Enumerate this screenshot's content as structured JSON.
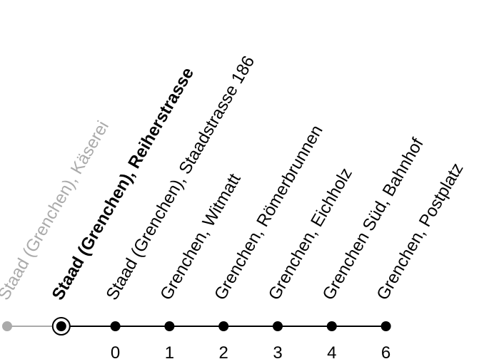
{
  "route": {
    "colors": {
      "past": "#aaaaaa",
      "line": "#000000",
      "background": "#ffffff"
    },
    "stops": [
      {
        "name": "Staad (Grenchen), Käserei",
        "minutes": "",
        "state": "past"
      },
      {
        "name": "Staad (Grenchen), Reiherstrasse",
        "minutes": "",
        "state": "current"
      },
      {
        "name": "Staad (Grenchen), Staadstrasse 186",
        "minutes": "0",
        "state": "upcoming"
      },
      {
        "name": "Grenchen, Witmatt",
        "minutes": "1",
        "state": "upcoming"
      },
      {
        "name": "Grenchen, Römerbrunnen",
        "minutes": "2",
        "state": "upcoming"
      },
      {
        "name": "Grenchen, Eichholz",
        "minutes": "3",
        "state": "upcoming"
      },
      {
        "name": "Grenchen Süd, Bahnhof",
        "minutes": "4",
        "state": "upcoming"
      },
      {
        "name": "Grenchen, Postplatz",
        "minutes": "6",
        "state": "upcoming"
      }
    ]
  }
}
